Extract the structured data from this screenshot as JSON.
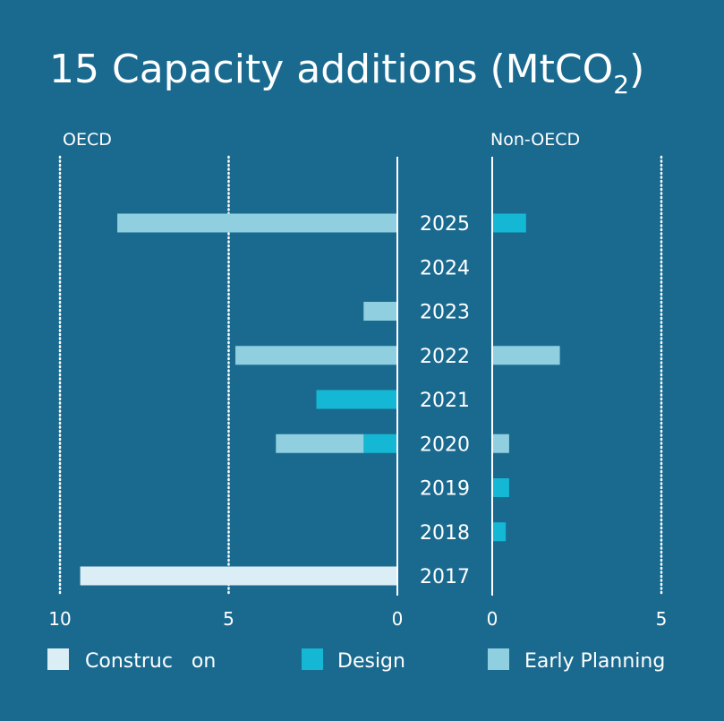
{
  "colors": {
    "background": "#1a6a90",
    "axis": "#ffffff",
    "construction": "#dceef5",
    "design": "#14b8d4",
    "early_planning": "#8fcfe0"
  },
  "chart_data": {
    "type": "bar",
    "orientation": "horizontal",
    "title": "15 Capacity additions (MtCO",
    "title_subscript": "2",
    "title_close": ")",
    "categories": [
      "2025",
      "2024",
      "2023",
      "2022",
      "2021",
      "2020",
      "2019",
      "2018",
      "2017"
    ],
    "panels": [
      {
        "name": "OECD",
        "direction": "left",
        "xlim": [
          0,
          10
        ],
        "ticks": [
          "10",
          "5",
          "0"
        ],
        "series": [
          {
            "name": "Construction",
            "values": [
              0,
              0,
              0,
              0,
              0,
              0,
              0,
              0,
              9.4
            ]
          },
          {
            "name": "Design",
            "values": [
              0,
              0,
              0,
              0,
              2.4,
              1.0,
              0,
              0,
              0
            ]
          },
          {
            "name": "Early Planning",
            "values": [
              8.3,
              0,
              1.0,
              4.8,
              0,
              2.6,
              0,
              0,
              0
            ]
          }
        ]
      },
      {
        "name": "Non-OECD",
        "direction": "right",
        "xlim": [
          0,
          5
        ],
        "ticks": [
          "0",
          "5"
        ],
        "series": [
          {
            "name": "Construction",
            "values": [
              0,
              0,
              0,
              0,
              0,
              0,
              0,
              0,
              0
            ]
          },
          {
            "name": "Design",
            "values": [
              1.0,
              0,
              0,
              0,
              0,
              0,
              0.5,
              0.4,
              0
            ]
          },
          {
            "name": "Early Planning",
            "values": [
              0,
              0,
              0,
              2.0,
              0,
              0.5,
              0,
              0,
              0
            ]
          }
        ]
      }
    ],
    "legend": {
      "position": "bottom",
      "entries": [
        "Construc   on",
        "Design",
        "Early Planning"
      ]
    },
    "grid": "dotted vertical at 5 and 10"
  }
}
